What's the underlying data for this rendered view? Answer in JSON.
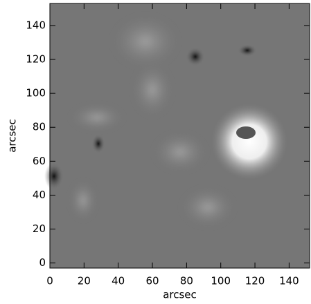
{
  "chart_data": {
    "type": "image",
    "x_label": "arcsec",
    "y_label": "arcsec",
    "xlim": [
      0,
      152
    ],
    "ylim": [
      -3,
      153
    ],
    "xticks": [
      0,
      20,
      40,
      60,
      80,
      100,
      120,
      140
    ],
    "yticks": [
      0,
      20,
      40,
      60,
      80,
      100,
      120,
      140
    ]
  }
}
